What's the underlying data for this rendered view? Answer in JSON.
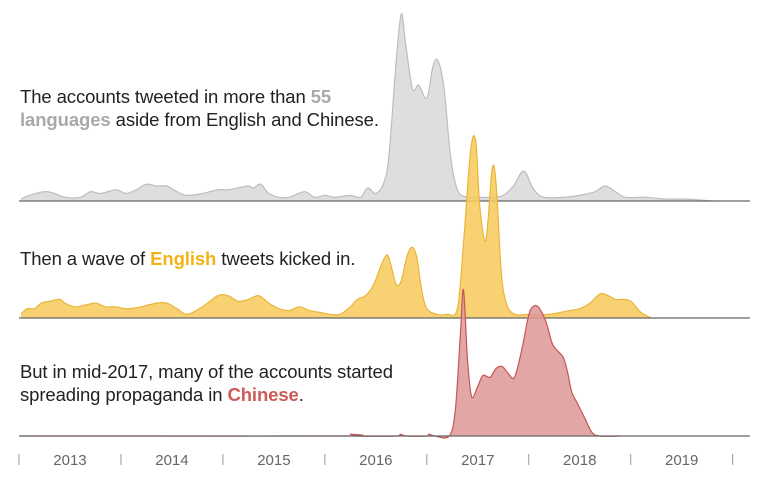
{
  "annotations": {
    "gray": {
      "before": "The accounts tweeted in more than ",
      "highlight": "55 languages",
      "after": " aside from English and Chinese."
    },
    "yellow": {
      "before": "Then a wave of ",
      "highlight": "English",
      "after": " tweets kicked in."
    },
    "red": {
      "before": "But in mid-2017, many of the accounts started spreading propaganda in ",
      "highlight": "Chinese",
      "after": "."
    }
  },
  "colors": {
    "gray_fill": "#d9d9d9",
    "gray_stroke": "#bdbdbd",
    "yellow_fill": "#f7cc5e",
    "yellow_stroke": "#eab43a",
    "red_fill": "#de9a9a",
    "red_stroke": "#c65555",
    "baseline": "#666666",
    "tick": "#999999"
  },
  "chart_data": {
    "type": "area",
    "x_domain": [
      2012.5,
      2019.67
    ],
    "x_ticks": [
      {
        "value": 2012.5,
        "label": ""
      },
      {
        "value": 2013,
        "label": "2013"
      },
      {
        "value": 2013.5,
        "label": ""
      },
      {
        "value": 2014,
        "label": "2014"
      },
      {
        "value": 2014.5,
        "label": ""
      },
      {
        "value": 2015,
        "label": "2015"
      },
      {
        "value": 2015.5,
        "label": ""
      },
      {
        "value": 2016,
        "label": "2016"
      },
      {
        "value": 2016.5,
        "label": ""
      },
      {
        "value": 2017,
        "label": "2017"
      },
      {
        "value": 2017.5,
        "label": ""
      },
      {
        "value": 2018,
        "label": "2018"
      },
      {
        "value": 2018.5,
        "label": ""
      },
      {
        "value": 2019,
        "label": "2019"
      },
      {
        "value": 2019.5,
        "label": ""
      }
    ],
    "series": [
      {
        "key": "other",
        "points": [
          [
            2012.52,
            0.01
          ],
          [
            2012.6,
            0.03
          ],
          [
            2012.75,
            0.05
          ],
          [
            2012.85,
            0.04
          ],
          [
            2012.95,
            0.02
          ],
          [
            2013.1,
            0.02
          ],
          [
            2013.2,
            0.05
          ],
          [
            2013.3,
            0.04
          ],
          [
            2013.45,
            0.06
          ],
          [
            2013.55,
            0.04
          ],
          [
            2013.65,
            0.06
          ],
          [
            2013.75,
            0.09
          ],
          [
            2013.85,
            0.08
          ],
          [
            2013.95,
            0.08
          ],
          [
            2014.05,
            0.05
          ],
          [
            2014.15,
            0.03
          ],
          [
            2014.3,
            0.04
          ],
          [
            2014.45,
            0.06
          ],
          [
            2014.55,
            0.06
          ],
          [
            2014.65,
            0.07
          ],
          [
            2014.75,
            0.08
          ],
          [
            2014.8,
            0.07
          ],
          [
            2014.87,
            0.09
          ],
          [
            2014.95,
            0.04
          ],
          [
            2015.05,
            0.02
          ],
          [
            2015.15,
            0.02
          ],
          [
            2015.3,
            0.05
          ],
          [
            2015.4,
            0.02
          ],
          [
            2015.5,
            0.03
          ],
          [
            2015.6,
            0.02
          ],
          [
            2015.75,
            0.03
          ],
          [
            2015.85,
            0.02
          ],
          [
            2015.92,
            0.07
          ],
          [
            2016.0,
            0.04
          ],
          [
            2016.08,
            0.1
          ],
          [
            2016.13,
            0.25
          ],
          [
            2016.2,
            0.75
          ],
          [
            2016.25,
            1.0
          ],
          [
            2016.29,
            0.85
          ],
          [
            2016.36,
            0.6
          ],
          [
            2016.42,
            0.62
          ],
          [
            2016.5,
            0.55
          ],
          [
            2016.56,
            0.72
          ],
          [
            2016.61,
            0.75
          ],
          [
            2016.67,
            0.6
          ],
          [
            2016.73,
            0.25
          ],
          [
            2016.8,
            0.06
          ],
          [
            2016.9,
            0.02
          ],
          [
            2017.0,
            0.02
          ],
          [
            2017.15,
            0.02
          ],
          [
            2017.25,
            0.03
          ],
          [
            2017.35,
            0.08
          ],
          [
            2017.45,
            0.16
          ],
          [
            2017.55,
            0.06
          ],
          [
            2017.65,
            0.02
          ],
          [
            2017.85,
            0.02
          ],
          [
            2018.0,
            0.03
          ],
          [
            2018.15,
            0.05
          ],
          [
            2018.25,
            0.08
          ],
          [
            2018.35,
            0.05
          ],
          [
            2018.45,
            0.02
          ],
          [
            2018.65,
            0.02
          ],
          [
            2018.85,
            0.01
          ],
          [
            2019.05,
            0.01
          ],
          [
            2019.3,
            0.0
          ]
        ]
      },
      {
        "key": "english",
        "points": [
          [
            2012.52,
            0.02
          ],
          [
            2012.58,
            0.05
          ],
          [
            2012.65,
            0.05
          ],
          [
            2012.72,
            0.08
          ],
          [
            2012.8,
            0.09
          ],
          [
            2012.9,
            0.1
          ],
          [
            2012.95,
            0.08
          ],
          [
            2013.05,
            0.06
          ],
          [
            2013.15,
            0.07
          ],
          [
            2013.25,
            0.08
          ],
          [
            2013.35,
            0.06
          ],
          [
            2013.45,
            0.06
          ],
          [
            2013.55,
            0.05
          ],
          [
            2013.7,
            0.06
          ],
          [
            2013.85,
            0.08
          ],
          [
            2013.95,
            0.08
          ],
          [
            2014.05,
            0.05
          ],
          [
            2014.15,
            0.02
          ],
          [
            2014.3,
            0.06
          ],
          [
            2014.45,
            0.12
          ],
          [
            2014.55,
            0.12
          ],
          [
            2014.65,
            0.09
          ],
          [
            2014.75,
            0.1
          ],
          [
            2014.85,
            0.12
          ],
          [
            2014.95,
            0.08
          ],
          [
            2015.05,
            0.05
          ],
          [
            2015.15,
            0.04
          ],
          [
            2015.25,
            0.06
          ],
          [
            2015.35,
            0.04
          ],
          [
            2015.45,
            0.03
          ],
          [
            2015.55,
            0.02
          ],
          [
            2015.65,
            0.02
          ],
          [
            2015.75,
            0.06
          ],
          [
            2015.82,
            0.1
          ],
          [
            2015.9,
            0.12
          ],
          [
            2015.98,
            0.18
          ],
          [
            2016.05,
            0.28
          ],
          [
            2016.11,
            0.34
          ],
          [
            2016.15,
            0.28
          ],
          [
            2016.2,
            0.18
          ],
          [
            2016.25,
            0.2
          ],
          [
            2016.3,
            0.32
          ],
          [
            2016.35,
            0.38
          ],
          [
            2016.4,
            0.33
          ],
          [
            2016.45,
            0.15
          ],
          [
            2016.5,
            0.05
          ],
          [
            2016.6,
            0.02
          ],
          [
            2016.7,
            0.02
          ],
          [
            2016.8,
            0.05
          ],
          [
            2016.86,
            0.4
          ],
          [
            2016.93,
            0.9
          ],
          [
            2016.98,
            0.95
          ],
          [
            2017.02,
            0.6
          ],
          [
            2017.08,
            0.42
          ],
          [
            2017.14,
            0.8
          ],
          [
            2017.18,
            0.72
          ],
          [
            2017.23,
            0.25
          ],
          [
            2017.28,
            0.08
          ],
          [
            2017.36,
            0.02
          ],
          [
            2017.5,
            0.02
          ],
          [
            2017.7,
            0.02
          ],
          [
            2017.9,
            0.04
          ],
          [
            2018.0,
            0.05
          ],
          [
            2018.1,
            0.08
          ],
          [
            2018.2,
            0.13
          ],
          [
            2018.28,
            0.12
          ],
          [
            2018.35,
            0.1
          ],
          [
            2018.42,
            0.1
          ],
          [
            2018.5,
            0.09
          ],
          [
            2018.6,
            0.03
          ],
          [
            2018.7,
            0.0
          ]
        ]
      },
      {
        "key": "chinese",
        "points": [
          [
            2012.52,
            0.0
          ],
          [
            2013.5,
            0.0
          ],
          [
            2015.7,
            0.0
          ],
          [
            2015.75,
            0.01
          ],
          [
            2015.82,
            0.0
          ],
          [
            2016.2,
            0.0
          ],
          [
            2016.24,
            0.01
          ],
          [
            2016.3,
            0.0
          ],
          [
            2016.5,
            0.0
          ],
          [
            2016.52,
            0.01
          ],
          [
            2016.58,
            0.0
          ],
          [
            2016.72,
            0.0
          ],
          [
            2016.78,
            0.15
          ],
          [
            2016.83,
            0.58
          ],
          [
            2016.86,
            0.82
          ],
          [
            2016.9,
            0.42
          ],
          [
            2016.94,
            0.22
          ],
          [
            2017.0,
            0.28
          ],
          [
            2017.05,
            0.34
          ],
          [
            2017.12,
            0.33
          ],
          [
            2017.18,
            0.38
          ],
          [
            2017.24,
            0.39
          ],
          [
            2017.3,
            0.35
          ],
          [
            2017.36,
            0.33
          ],
          [
            2017.43,
            0.48
          ],
          [
            2017.5,
            0.68
          ],
          [
            2017.55,
            0.73
          ],
          [
            2017.6,
            0.72
          ],
          [
            2017.67,
            0.64
          ],
          [
            2017.73,
            0.52
          ],
          [
            2017.78,
            0.48
          ],
          [
            2017.84,
            0.44
          ],
          [
            2017.88,
            0.36
          ],
          [
            2017.92,
            0.25
          ],
          [
            2017.98,
            0.18
          ],
          [
            2018.05,
            0.1
          ],
          [
            2018.12,
            0.02
          ],
          [
            2018.2,
            0.0
          ],
          [
            2018.4,
            0.0
          ]
        ]
      }
    ]
  }
}
